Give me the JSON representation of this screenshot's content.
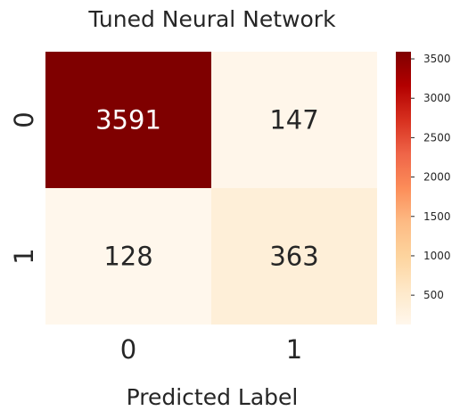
{
  "chart_data": {
    "type": "heatmap",
    "title": "Tuned Neural Network",
    "xlabel": "Predicted Label",
    "ylabel": "",
    "x_categories": [
      "0",
      "1"
    ],
    "y_categories": [
      "0",
      "1"
    ],
    "values": [
      [
        3591,
        147
      ],
      [
        128,
        363
      ]
    ],
    "value_labels": [
      [
        "3591",
        "147"
      ],
      [
        "128",
        "363"
      ]
    ],
    "colormap": "OrRd",
    "colorbar": {
      "min": 128,
      "max": 3591,
      "ticks": [
        500,
        1000,
        1500,
        2000,
        2500,
        3000,
        3500
      ],
      "tick_labels": [
        "500",
        "1000",
        "1500",
        "2000",
        "2500",
        "3000",
        "3500"
      ]
    },
    "grid": false
  }
}
